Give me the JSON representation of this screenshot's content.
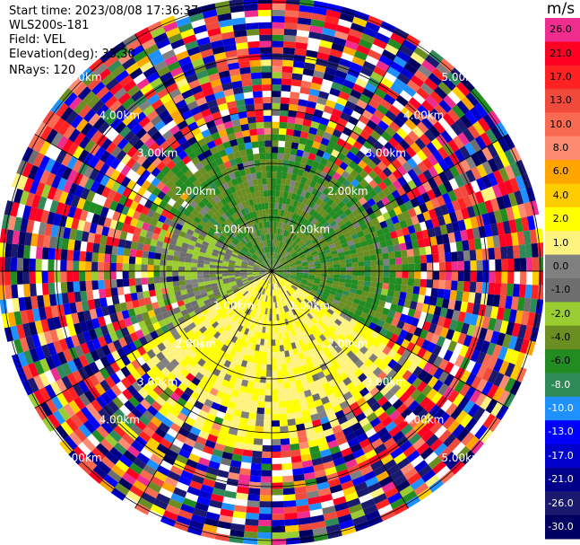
{
  "header": {
    "start_time": "Start time: 2023/08/08 17:36:37",
    "instrument": "WLS200s-181",
    "field": "Field: VEL",
    "elevation": "Elevation(deg): 35.30",
    "nrays": "NRays: 120"
  },
  "colorbar": {
    "unit": "m/s",
    "levels": [
      {
        "label": "26.0",
        "color": "#ee2d8f"
      },
      {
        "label": "21.0",
        "color": "#ff0022"
      },
      {
        "label": "17.0",
        "color": "#ff2222"
      },
      {
        "label": "13.0",
        "color": "#f04a3c"
      },
      {
        "label": "10.0",
        "color": "#f96a52"
      },
      {
        "label": "8.0",
        "color": "#fc8b72"
      },
      {
        "label": "6.0",
        "color": "#ffa500"
      },
      {
        "label": "4.0",
        "color": "#ffcc00"
      },
      {
        "label": "2.0",
        "color": "#ffff00"
      },
      {
        "label": "1.0",
        "color": "#fff380"
      },
      {
        "label": "0.0",
        "color": "#808080"
      },
      {
        "label": "-1.0",
        "color": "#6e6e6e"
      },
      {
        "label": "-2.0",
        "color": "#9acd32"
      },
      {
        "label": "-4.0",
        "color": "#6b8e23"
      },
      {
        "label": "-6.0",
        "color": "#228b22"
      },
      {
        "label": "-8.0",
        "color": "#2e8b57"
      },
      {
        "label": "-10.0",
        "color": "#1e90ff"
      },
      {
        "label": "-13.0",
        "color": "#0000ff"
      },
      {
        "label": "-17.0",
        "color": "#0000cd"
      },
      {
        "label": "-21.0",
        "color": "#00008b"
      },
      {
        "label": "-26.0",
        "color": "#191970"
      },
      {
        "label": "-30.0",
        "color": "#000060"
      }
    ]
  },
  "chart_data": {
    "type": "heatmap",
    "projection": "polar PPI",
    "field": "VEL",
    "nrays": 120,
    "range_rings_km": [
      1.0,
      2.0,
      3.0,
      4.0,
      5.0
    ],
    "range_ring_labels": [
      "1.00km",
      "2.00km",
      "3.00km",
      "4.00km",
      "5.00km"
    ],
    "sectors": [
      {
        "from_deg": 0,
        "to_deg": 120,
        "near_value": -4.0,
        "near_range_km": 2.2
      },
      {
        "from_deg": 120,
        "to_deg": 240,
        "near_value": 2.0,
        "near_range_km": 2.8
      },
      {
        "from_deg": 240,
        "to_deg": 300,
        "near_value": -1.0,
        "near_range_km": 2.0
      },
      {
        "from_deg": 300,
        "to_deg": 360,
        "near_value": -4.0,
        "near_range_km": 2.2
      }
    ],
    "far_range": "noisy / random velocities across the full colour scale",
    "colorscale_min": -30.0,
    "colorscale_max": 26.0,
    "unit": "m/s"
  },
  "colors": {
    "background": "#ffffff",
    "grid": "#000000",
    "ring_label": "#ffffff"
  }
}
